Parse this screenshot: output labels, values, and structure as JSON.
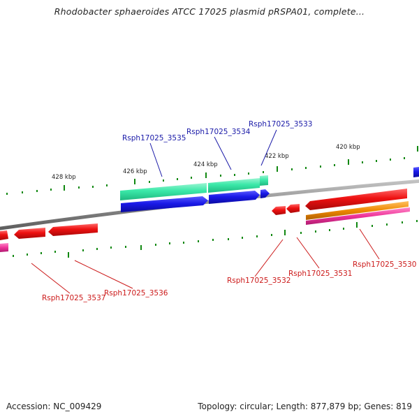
{
  "header": {
    "title": "Rhodobacter sphaeroides ATCC 17025 plasmid pRSPA01, complete..."
  },
  "footer": {
    "accession": "Accession: NC_009429",
    "summary": "Topology: circular; Length: 877,879 bp; Genes: 819"
  },
  "colors": {
    "backbone": "#8c8c8c",
    "tick": "#118811",
    "forward_gene_label": "#1a1aa8",
    "reverse_gene_label": "#cc1a1a",
    "cds_blue": "#1a1ae8",
    "cds_green": "#3ae8a8",
    "cds_red": "#ee1111",
    "cds_orange": "#ee8800",
    "cds_pink": "#ee3399"
  },
  "scale_labels": [
    {
      "text": "428 kbp"
    },
    {
      "text": "426 kbp"
    },
    {
      "text": "424 kbp"
    },
    {
      "text": "422 kbp"
    },
    {
      "text": "420 kbp"
    }
  ],
  "gene_labels": [
    {
      "text": "Rsph17025_3535",
      "strand": "forward"
    },
    {
      "text": "Rsph17025_3534",
      "strand": "forward"
    },
    {
      "text": "Rsph17025_3533",
      "strand": "forward"
    },
    {
      "text": "Rsph17025_3537",
      "strand": "reverse"
    },
    {
      "text": "Rsph17025_3536",
      "strand": "reverse"
    },
    {
      "text": "Rsph17025_3532",
      "strand": "reverse"
    },
    {
      "text": "Rsph17025_3531",
      "strand": "reverse"
    },
    {
      "text": "Rsph17025_3530",
      "strand": "reverse"
    }
  ]
}
